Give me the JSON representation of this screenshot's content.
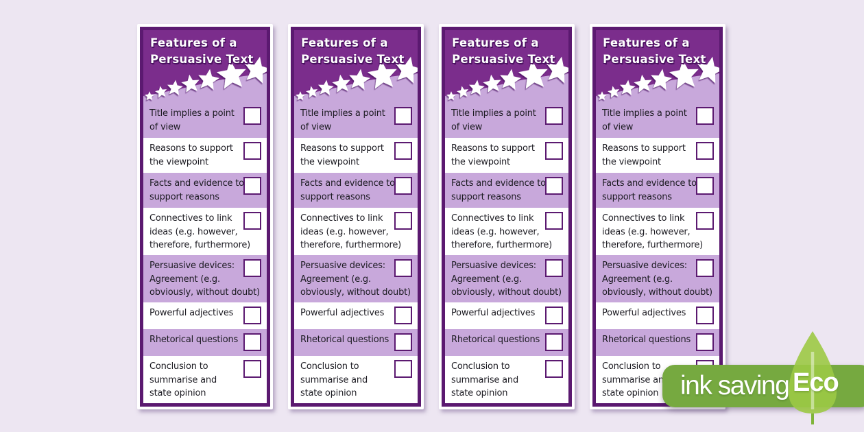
{
  "app": {
    "background_color": "#EDE6F2"
  },
  "bookmark": {
    "count": 4,
    "title": {
      "line1": "Features of a",
      "line2": "Persuasive Text"
    },
    "colors": {
      "header_bg": "#7B2D8C",
      "border": "#5B1970",
      "frame": "#FFFFFF",
      "row_highlight": "#C8A8DB",
      "row_plain": "#FFFFFF",
      "text": "#1C1B22",
      "star": "#FFFFFF"
    },
    "items": [
      {
        "lines": [
          "Title implies a point",
          "of view"
        ],
        "shaded": true,
        "checked": false
      },
      {
        "lines": [
          "Reasons to support",
          "the viewpoint"
        ],
        "shaded": false,
        "checked": false
      },
      {
        "lines": [
          "Facts and evidence to",
          "support reasons"
        ],
        "shaded": true,
        "checked": false
      },
      {
        "lines": [
          "Connectives to link",
          "ideas (e.g. however,",
          "therefore, furthermore)"
        ],
        "shaded": false,
        "checked": false
      },
      {
        "lines": [
          "Persuasive devices:",
          "Agreement (e.g.",
          "obviously, without doubt)"
        ],
        "shaded": true,
        "checked": false
      },
      {
        "lines": [
          "Powerful adjectives"
        ],
        "shaded": false,
        "checked": false
      },
      {
        "lines": [
          "Rhetorical questions"
        ],
        "shaded": true,
        "checked": false
      },
      {
        "lines": [
          "Conclusion to",
          "summarise and",
          "state opinion"
        ],
        "shaded": false,
        "checked": false
      }
    ]
  },
  "eco_badge": {
    "label": "ink saving",
    "eco": "Eco",
    "colors": {
      "badge_bg": "#76A940",
      "leaf": "#9CC945",
      "text": "#FFFFFF"
    }
  }
}
